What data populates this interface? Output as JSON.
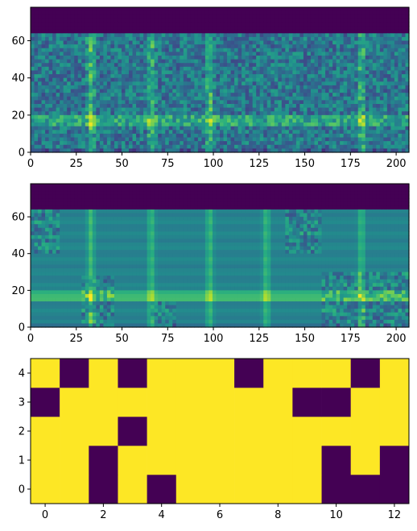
{
  "colors": {
    "dark": "#440154",
    "bright": "#fde725",
    "colormap": "viridis"
  },
  "chart_data": [
    {
      "type": "heatmap",
      "title": "",
      "xlabel": "",
      "ylabel": "",
      "xlim": [
        0,
        207
      ],
      "ylim": [
        0,
        78
      ],
      "x_ticks": [
        "0",
        "25",
        "50",
        "75",
        "100",
        "125",
        "150",
        "175",
        "200"
      ],
      "y_ticks": [
        "0",
        "20",
        "40",
        "60"
      ],
      "description_values": {
        "bands_top_rows_value": 0,
        "noise_floor_rows": [
          0,
          64
        ],
        "bright_band_y": [
          14,
          20
        ],
        "bright_columns_x": [
          33,
          66,
          98,
          181
        ]
      }
    },
    {
      "type": "heatmap",
      "title": "",
      "xlabel": "",
      "ylabel": "",
      "xlim": [
        0,
        207
      ],
      "ylim": [
        0,
        78
      ],
      "x_ticks": [
        "0",
        "25",
        "50",
        "75",
        "100",
        "125",
        "150",
        "175",
        "200"
      ],
      "y_ticks": [
        "0",
        "20",
        "40",
        "60"
      ],
      "description_values": {
        "bands_top_rows_value": 0,
        "smooth_rows": [
          0,
          64
        ],
        "bright_band_y": [
          14,
          20
        ],
        "bright_columns_x": [
          33,
          66,
          98,
          129,
          181
        ]
      }
    },
    {
      "type": "heatmap",
      "title": "",
      "xlabel": "",
      "ylabel": "",
      "xlim": [
        -0.5,
        12.5
      ],
      "ylim": [
        -0.5,
        4.5
      ],
      "x_ticks": [
        "0",
        "2",
        "4",
        "6",
        "8",
        "10",
        "12"
      ],
      "y_ticks": [
        "0",
        "1",
        "2",
        "3",
        "4"
      ],
      "rows": [
        0,
        1,
        2,
        3,
        4
      ],
      "columns": [
        0,
        1,
        2,
        3,
        4,
        5,
        6,
        7,
        8,
        9,
        10,
        11,
        12
      ],
      "values": [
        [
          1,
          1,
          0,
          1,
          0,
          1,
          1,
          1,
          1,
          1,
          0,
          0,
          0
        ],
        [
          1,
          1,
          0,
          1,
          1,
          1,
          1,
          1,
          1,
          1,
          0,
          1,
          0
        ],
        [
          1,
          1,
          1,
          0,
          1,
          1,
          1,
          1,
          1,
          1,
          1,
          1,
          1
        ],
        [
          0,
          1,
          1,
          1,
          1,
          1,
          1,
          1,
          1,
          0,
          0,
          1,
          1
        ],
        [
          1,
          0,
          1,
          0,
          1,
          1,
          1,
          0,
          1,
          1,
          1,
          0,
          1
        ]
      ]
    }
  ]
}
